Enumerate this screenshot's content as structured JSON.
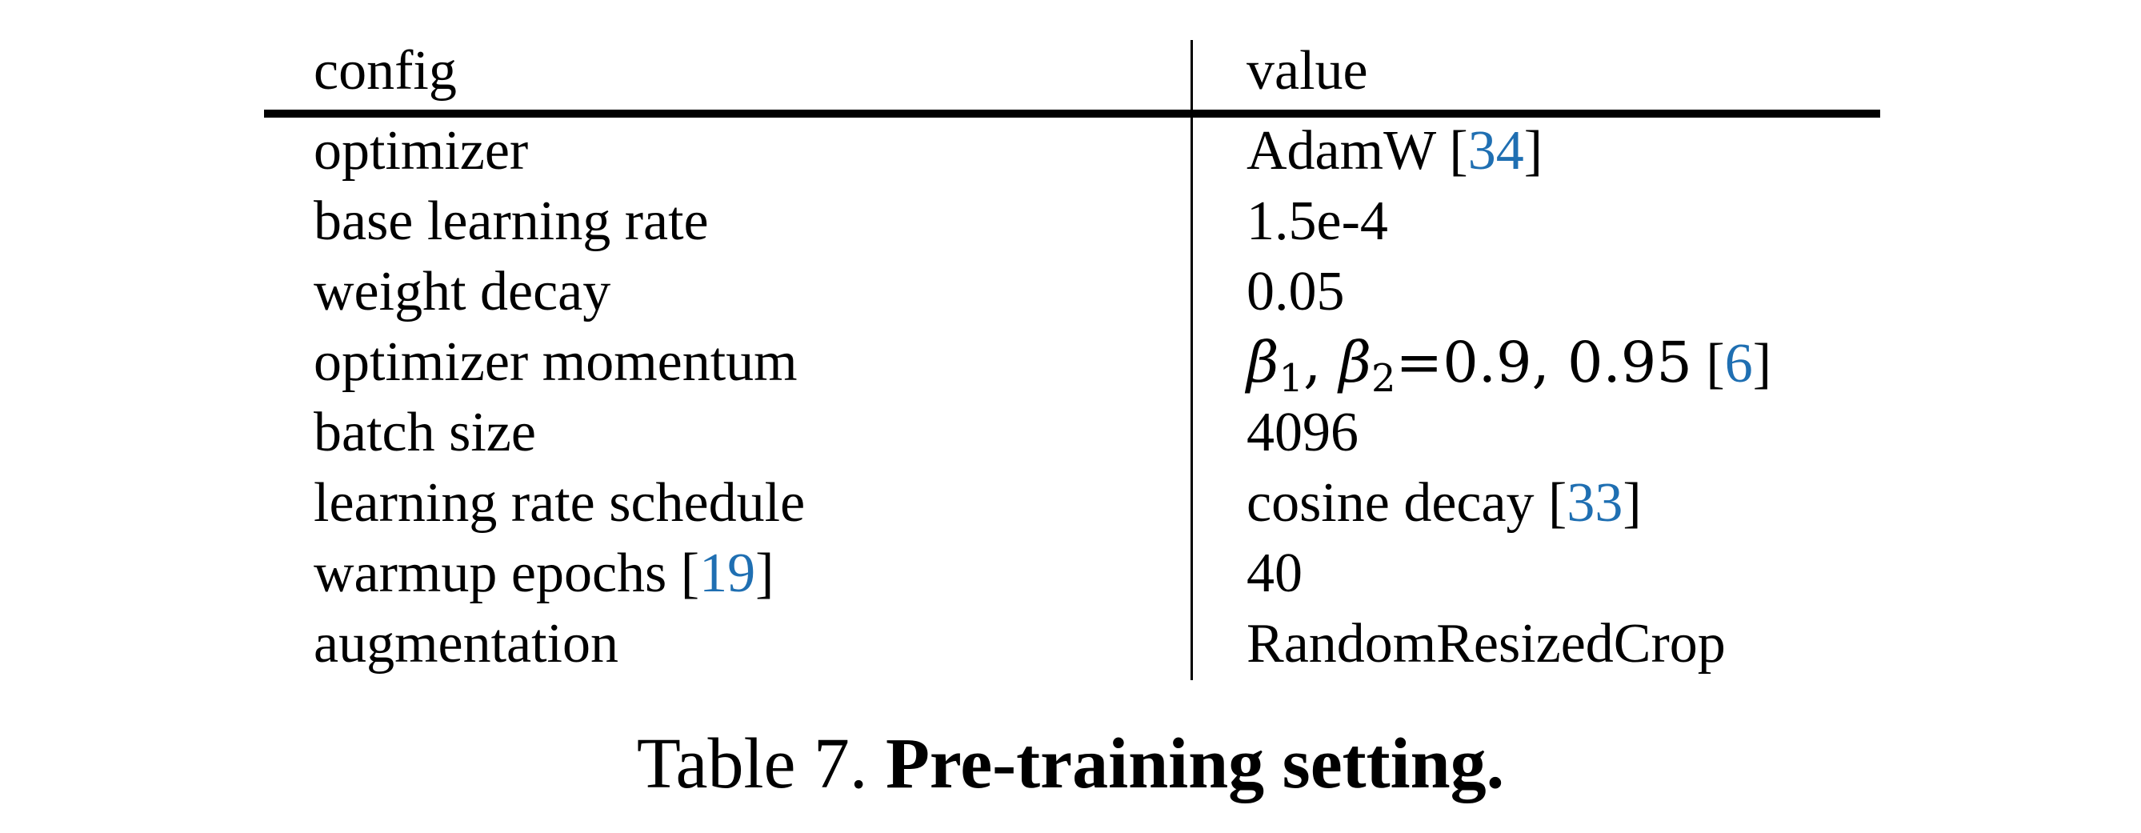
{
  "table": {
    "header": {
      "config": "config",
      "value": "value"
    },
    "rows": [
      {
        "config": "optimizer",
        "value": "AdamW",
        "value_ref": "34"
      },
      {
        "config": "base learning rate",
        "value": "1.5e-4"
      },
      {
        "config": "weight decay",
        "value": "0.05"
      },
      {
        "config": "optimizer momentum",
        "beta1": "β",
        "sub1": "1",
        "beta2": "β",
        "sub2": "2",
        "momentum_values": "=0.9, 0.95",
        "value_ref": "6"
      },
      {
        "config": "batch size",
        "value": "4096"
      },
      {
        "config": "learning rate schedule",
        "value": "cosine decay",
        "value_ref": "33"
      },
      {
        "config": "warmup epochs",
        "config_ref": "19",
        "value": "40"
      },
      {
        "config": "augmentation",
        "value": "RandomResizedCrop"
      }
    ]
  },
  "caption": {
    "label": "Table 7.",
    "title": "Pre-training setting."
  },
  "colors": {
    "text": "#000000",
    "citation": "#1f6fb2",
    "background": "#ffffff"
  }
}
